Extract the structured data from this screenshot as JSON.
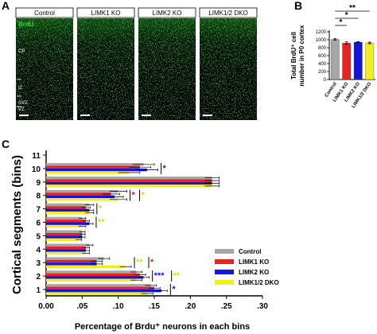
{
  "panels": {
    "a": "A",
    "b": "B",
    "c": "C"
  },
  "panel_a": {
    "columns": [
      "Control",
      "LIMK1 KO",
      "LIMK2 KO",
      "LIMK1/2 DKO"
    ],
    "stain_label": "BrdU",
    "layer_labels": [
      "CP",
      "IZ",
      "SVZ",
      "VZ"
    ]
  },
  "colors": {
    "control": "#a6a6a6",
    "limk1": "#e8231f",
    "limk2": "#1515d8",
    "dko": "#f2ee24",
    "sig_blue": "#1a1ad0",
    "sig_red": "#e02020",
    "sig_yellow": "#e6d61c"
  },
  "chart_data": [
    {
      "type": "bar",
      "categories": [
        "Control",
        "LIMK1 KO",
        "LIMK2 KO",
        "LIMK1/2 DKO"
      ],
      "values": [
        1010,
        915,
        940,
        920
      ],
      "errors": [
        18,
        30,
        12,
        20
      ],
      "ylabel_lines": [
        "Total BrdU⁺ cell",
        "number in P0 cortex"
      ],
      "ylim": [
        0,
        1200
      ],
      "yticks": [
        "0",
        "200",
        "400",
        "600",
        "800",
        "1000",
        "1200"
      ],
      "significance": [
        "*",
        "*",
        "**"
      ]
    },
    {
      "type": "bar",
      "orientation": "horizontal",
      "categories": [
        "1",
        "2",
        "3",
        "4",
        "5",
        "6",
        "7",
        "8",
        "9",
        "10",
        "11"
      ],
      "series": [
        {
          "name": "Control",
          "values": [
            0.145,
            0.125,
            0.08,
            0.06,
            0.05,
            0.05,
            0.06,
            0.1,
            0.23,
            0.135,
            0
          ]
        },
        {
          "name": "LIMK1 KO",
          "values": [
            0.15,
            0.13,
            0.07,
            0.055,
            0.05,
            0.055,
            0.055,
            0.09,
            0.23,
            0.13,
            0
          ]
        },
        {
          "name": "LIMK2 KO",
          "values": [
            0.16,
            0.135,
            0.07,
            0.055,
            0.05,
            0.06,
            0.06,
            0.095,
            0.23,
            0.14,
            0
          ]
        },
        {
          "name": "LIMK1/2 DKO",
          "values": [
            0.14,
            0.125,
            0.11,
            0.055,
            0.045,
            0.05,
            0.06,
            0.1,
            0.23,
            0.115,
            0
          ]
        }
      ],
      "errors": [
        0.008,
        0.008,
        0.008,
        0.005,
        0.004,
        0.005,
        0.006,
        0.012,
        0.01,
        0.015,
        0
      ],
      "xlabel": "Percentage of Brdu⁺ neurons in each bins",
      "ylabel": "Cortical segments (bins)",
      "xlim": [
        0,
        0.3
      ],
      "xticks": [
        "0.00",
        ".05",
        ".10",
        ".15",
        ".20",
        ".25",
        ".30"
      ],
      "significance": [
        {
          "bin": 10,
          "text": "*",
          "color": "blue"
        },
        {
          "bin": 8,
          "text": "*",
          "color": "red"
        },
        {
          "bin": 8,
          "text": "*",
          "color": "yellow"
        },
        {
          "bin": 7,
          "text": "*",
          "color": "yellow"
        },
        {
          "bin": 6,
          "text": "**",
          "color": "yellow"
        },
        {
          "bin": 3,
          "text": "**",
          "color": "yellow"
        },
        {
          "bin": 3,
          "text": "*",
          "color": "red"
        },
        {
          "bin": 2,
          "text": "***",
          "color": "blue"
        },
        {
          "bin": 2,
          "text": "**",
          "color": "yellow"
        },
        {
          "bin": 1,
          "text": "*",
          "color": "blue"
        }
      ]
    }
  ]
}
